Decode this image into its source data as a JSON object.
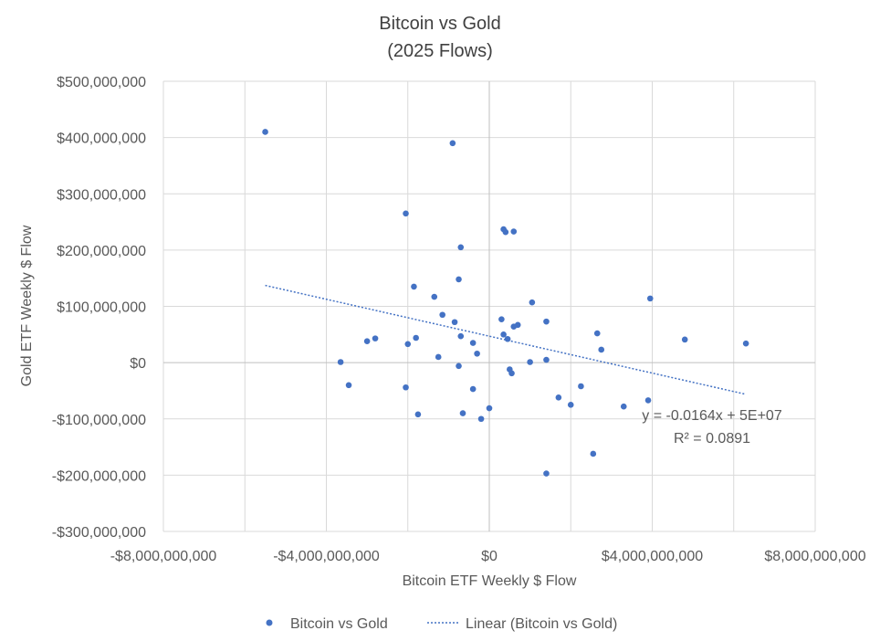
{
  "chart_data": {
    "type": "scatter",
    "title": [
      "Bitcoin vs Gold",
      "(2025 Flows)"
    ],
    "xlabel": "Bitcoin ETF Weekly $ Flow",
    "ylabel": "Gold ETF Weekly $ Flow",
    "xlim": [
      -8000000000,
      8000000000
    ],
    "ylim": [
      -300000000,
      500000000
    ],
    "x_ticks": [
      -8000000000,
      -4000000000,
      0,
      4000000000,
      8000000000
    ],
    "x_tick_labels": [
      "-$8,000,000,000",
      "-$4,000,000,000",
      "$0",
      "$4,000,000,000",
      "$8,000,000,000"
    ],
    "y_ticks": [
      -300000000,
      -200000000,
      -100000000,
      0,
      100000000,
      200000000,
      300000000,
      400000000,
      500000000
    ],
    "y_tick_labels": [
      "-$300,000,000",
      "-$200,000,000",
      "-$100,000,000",
      "$0",
      "$100,000,000",
      "$200,000,000",
      "$300,000,000",
      "$400,000,000",
      "$500,000,000"
    ],
    "x_grid_lines": [
      -6000000000,
      -4000000000,
      -2000000000,
      2000000000,
      4000000000,
      6000000000
    ],
    "grid": true,
    "legend_position": "bottom",
    "series": [
      {
        "name": "Bitcoin vs Gold",
        "color": "#4472c4",
        "marker": "circle",
        "points": [
          [
            -5500000000,
            410000000
          ],
          [
            -900000000,
            390000000
          ],
          [
            -2050000000,
            265000000
          ],
          [
            350000000,
            237000000
          ],
          [
            400000000,
            232000000
          ],
          [
            600000000,
            233000000
          ],
          [
            -700000000,
            205000000
          ],
          [
            -750000000,
            148000000
          ],
          [
            -1850000000,
            135000000
          ],
          [
            -1350000000,
            117000000
          ],
          [
            1050000000,
            107000000
          ],
          [
            3950000000,
            114000000
          ],
          [
            -1150000000,
            85000000
          ],
          [
            -850000000,
            72000000
          ],
          [
            300000000,
            77000000
          ],
          [
            1400000000,
            73000000
          ],
          [
            700000000,
            67000000
          ],
          [
            600000000,
            64000000
          ],
          [
            2650000000,
            52000000
          ],
          [
            350000000,
            50000000
          ],
          [
            -700000000,
            47000000
          ],
          [
            -1800000000,
            44000000
          ],
          [
            -2800000000,
            43000000
          ],
          [
            -3000000000,
            38000000
          ],
          [
            450000000,
            42000000
          ],
          [
            4800000000,
            41000000
          ],
          [
            -400000000,
            35000000
          ],
          [
            6300000000,
            34000000
          ],
          [
            -2000000000,
            33000000
          ],
          [
            2750000000,
            23000000
          ],
          [
            -300000000,
            16000000
          ],
          [
            -1250000000,
            10000000
          ],
          [
            -3650000000,
            1000000
          ],
          [
            1000000000,
            1000000
          ],
          [
            1400000000,
            5000000
          ],
          [
            -750000000,
            -6000000
          ],
          [
            500000000,
            -12000000
          ],
          [
            550000000,
            -19000000
          ],
          [
            -3450000000,
            -40000000
          ],
          [
            -2050000000,
            -44000000
          ],
          [
            2250000000,
            -42000000
          ],
          [
            -400000000,
            -47000000
          ],
          [
            1700000000,
            -62000000
          ],
          [
            3900000000,
            -67000000
          ],
          [
            2000000000,
            -75000000
          ],
          [
            3300000000,
            -78000000
          ],
          [
            0,
            -81000000
          ],
          [
            -650000000,
            -90000000
          ],
          [
            -1750000000,
            -92000000
          ],
          [
            -200000000,
            -100000000
          ],
          [
            2550000000,
            -162000000
          ],
          [
            1400000000,
            -197000000
          ]
        ]
      }
    ],
    "trendline": {
      "name": "Linear (Bitcoin vs Gold)",
      "type": "linear",
      "color": "#4472c4",
      "slope": -0.0164,
      "intercept": 47000000,
      "x_range": [
        -5500000000,
        6300000000
      ],
      "equation_label": "y = -0.0164x + 5E+07",
      "r2_label": "R² = 0.0891"
    },
    "legend": [
      {
        "label": "Bitcoin vs Gold",
        "kind": "marker"
      },
      {
        "label": "Linear (Bitcoin vs Gold)",
        "kind": "dotted-line"
      }
    ]
  }
}
